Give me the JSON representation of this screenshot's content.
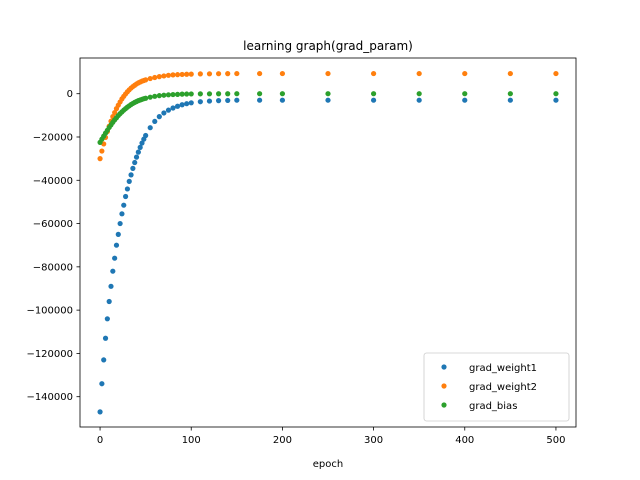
{
  "chart_data": {
    "type": "scatter",
    "title": "learning graph(grad_param)",
    "xlabel": "epoch",
    "ylabel": "",
    "xlim": [
      -22,
      522
    ],
    "ylim": [
      -154000,
      16500
    ],
    "xticks": [
      0,
      100,
      200,
      300,
      400,
      500
    ],
    "xtick_labels": [
      "0",
      "100",
      "200",
      "300",
      "400",
      "500"
    ],
    "yticks": [
      0,
      -20000,
      -40000,
      -60000,
      -80000,
      -100000,
      -120000,
      -140000
    ],
    "ytick_labels": [
      "0",
      "−20000",
      "−40000",
      "−60000",
      "−80000",
      "−100000",
      "−120000",
      "−140000"
    ],
    "grid": false,
    "legend_position": "lower-right",
    "series": [
      {
        "name": "grad_weight1",
        "color": "#1f77b4",
        "x": [
          0,
          2,
          4,
          6,
          8,
          10,
          12,
          14,
          16,
          18,
          20,
          22,
          24,
          26,
          28,
          30,
          32,
          34,
          36,
          38,
          40,
          42,
          44,
          46,
          48,
          50,
          55,
          60,
          65,
          70,
          75,
          80,
          85,
          90,
          95,
          100,
          110,
          120,
          130,
          140,
          150,
          175,
          200,
          250,
          300,
          350,
          400,
          450,
          500
        ],
        "y": [
          -147000,
          -134000,
          -123000,
          -113000,
          -104000,
          -96000,
          -89000,
          -82000,
          -76000,
          -70000,
          -65000,
          -60000,
          -55500,
          -51500,
          -47500,
          -44000,
          -40500,
          -37500,
          -34500,
          -31800,
          -29300,
          -27000,
          -24800,
          -22800,
          -21000,
          -19300,
          -15700,
          -12800,
          -10600,
          -8900,
          -7600,
          -6600,
          -5800,
          -5100,
          -4600,
          -4200,
          -3700,
          -3400,
          -3200,
          -3100,
          -3000,
          -3000,
          -3000,
          -3000,
          -3000,
          -3000,
          -3000,
          -3000,
          -3000
        ]
      },
      {
        "name": "grad_weight2",
        "color": "#ff7f0e",
        "x": [
          0,
          2,
          4,
          6,
          8,
          10,
          12,
          14,
          16,
          18,
          20,
          22,
          24,
          26,
          28,
          30,
          32,
          34,
          36,
          38,
          40,
          42,
          44,
          46,
          48,
          50,
          55,
          60,
          65,
          70,
          75,
          80,
          85,
          90,
          95,
          100,
          110,
          120,
          130,
          140,
          150,
          175,
          200,
          250,
          300,
          350,
          400,
          450,
          500
        ],
        "y": [
          -30000,
          -26500,
          -23200,
          -20200,
          -17500,
          -15000,
          -12700,
          -10600,
          -8700,
          -6900,
          -5300,
          -3800,
          -2400,
          -1200,
          -100,
          900,
          1800,
          2600,
          3300,
          3900,
          4500,
          5000,
          5400,
          5800,
          6100,
          6400,
          7000,
          7500,
          7900,
          8200,
          8500,
          8700,
          8800,
          8900,
          9000,
          9050,
          9150,
          9200,
          9250,
          9280,
          9300,
          9300,
          9300,
          9300,
          9300,
          9300,
          9300,
          9300,
          9300
        ]
      },
      {
        "name": "grad_bias",
        "color": "#2ca02c",
        "x": [
          0,
          2,
          4,
          6,
          8,
          10,
          12,
          14,
          16,
          18,
          20,
          22,
          24,
          26,
          28,
          30,
          32,
          34,
          36,
          38,
          40,
          42,
          44,
          46,
          48,
          50,
          55,
          60,
          65,
          70,
          75,
          80,
          85,
          90,
          95,
          100,
          110,
          120,
          130,
          140,
          150,
          175,
          200,
          250,
          300,
          350,
          400,
          450,
          500
        ],
        "y": [
          -22500,
          -21000,
          -19600,
          -18200,
          -16900,
          -15600,
          -14400,
          -13200,
          -12100,
          -11100,
          -10100,
          -9200,
          -8400,
          -7600,
          -6900,
          -6200,
          -5600,
          -5000,
          -4500,
          -4000,
          -3600,
          -3200,
          -2900,
          -2600,
          -2300,
          -2100,
          -1600,
          -1200,
          -900,
          -700,
          -500,
          -400,
          -300,
          -200,
          -150,
          -100,
          -60,
          -40,
          -20,
          -10,
          0,
          0,
          0,
          0,
          0,
          0,
          0,
          0,
          0
        ]
      }
    ]
  }
}
